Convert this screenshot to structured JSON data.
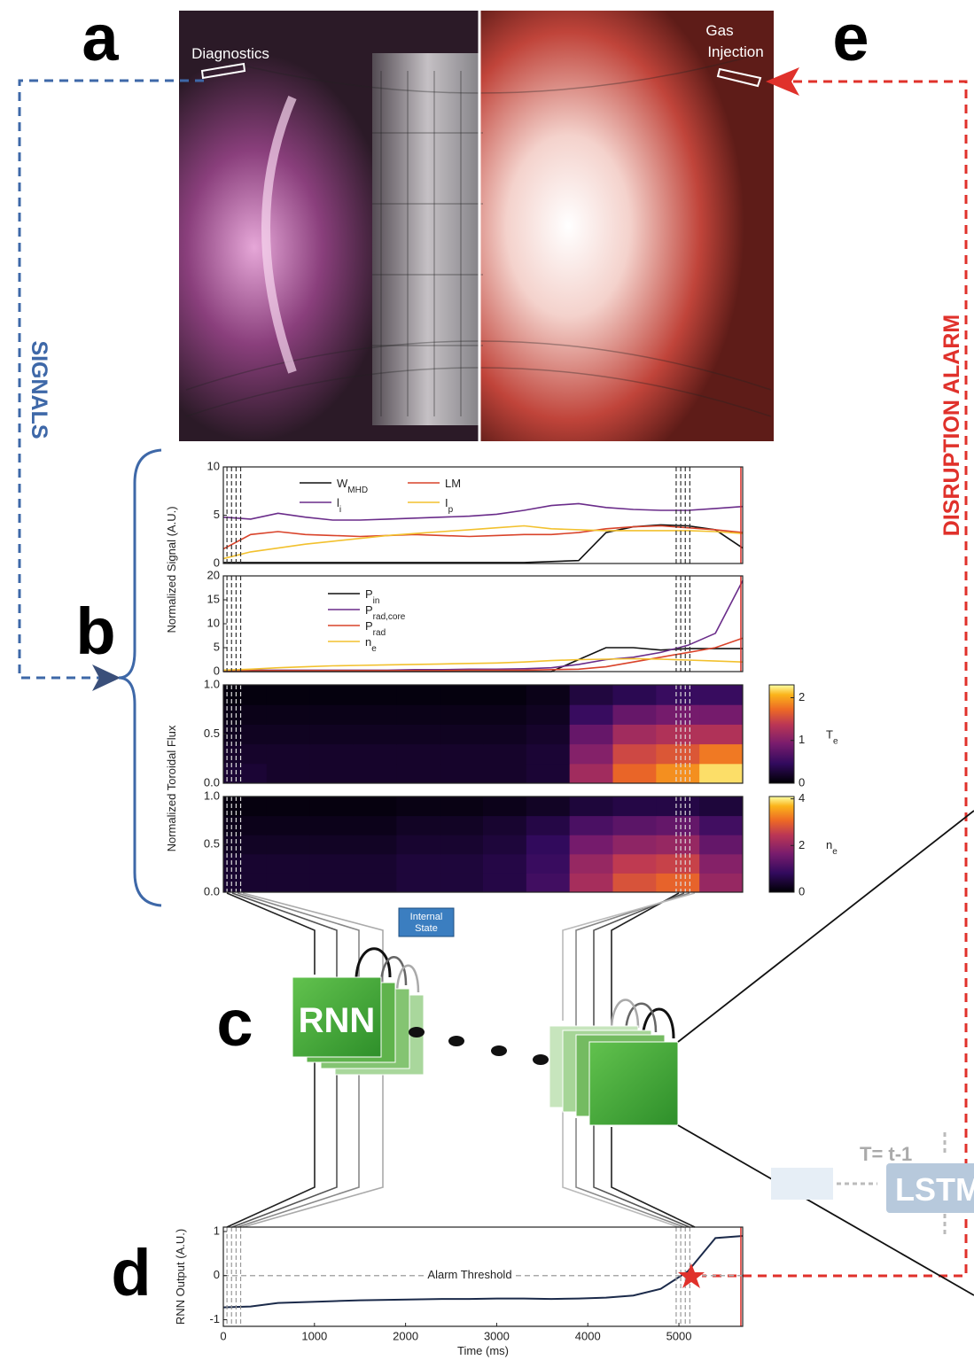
{
  "figure": {
    "panels": [
      "a",
      "b",
      "c",
      "d",
      "e"
    ],
    "diagnostics": "Diagnostics",
    "gas_injection": [
      "Gas",
      "Injection"
    ],
    "signals": "SIGNALS",
    "alarm": "DISRUPTION ALARM",
    "rnn": "RNN",
    "internal_state": [
      "Internal",
      "State"
    ],
    "lstm_time": "T= t-1",
    "lstm": "LSTM"
  },
  "chart_data": [
    {
      "type": "line",
      "ylabel": "Normalized Signal (A.U.)",
      "xlim": [
        0,
        5700
      ],
      "ylim": [
        0,
        10
      ],
      "yticks": [
        0,
        5,
        10
      ],
      "x": [
        0,
        300,
        600,
        900,
        1200,
        1500,
        1800,
        2100,
        2400,
        2700,
        3000,
        3300,
        3600,
        3900,
        4200,
        4500,
        4800,
        5100,
        5400,
        5700
      ],
      "series": [
        {
          "name": "W",
          "sub": "MHD",
          "color": "#111111",
          "values": [
            0.1,
            0.1,
            0.1,
            0.1,
            0.1,
            0.1,
            0.1,
            0.1,
            0.1,
            0.1,
            0.1,
            0.1,
            0.2,
            0.3,
            3.2,
            3.8,
            4.0,
            3.9,
            3.5,
            1.6
          ]
        },
        {
          "name": "LM",
          "color": "#d9432a",
          "values": [
            1.5,
            3.0,
            3.3,
            3.0,
            2.9,
            2.8,
            2.9,
            3.0,
            2.9,
            2.8,
            2.9,
            3.0,
            3.0,
            3.2,
            3.6,
            3.8,
            3.9,
            3.7,
            3.5,
            3.2
          ]
        },
        {
          "name": "l",
          "sub": "i",
          "color": "#6a2c8a",
          "values": [
            4.8,
            4.6,
            5.2,
            4.8,
            4.5,
            4.5,
            4.6,
            4.7,
            4.8,
            4.9,
            5.1,
            5.5,
            6.0,
            6.2,
            5.8,
            5.6,
            5.5,
            5.5,
            5.7,
            5.9
          ]
        },
        {
          "name": "I",
          "sub": "p",
          "color": "#f2c12e",
          "values": [
            0.5,
            1.2,
            1.6,
            2.0,
            2.3,
            2.6,
            2.9,
            3.1,
            3.3,
            3.5,
            3.7,
            3.9,
            3.6,
            3.5,
            3.4,
            3.4,
            3.4,
            3.4,
            3.3,
            3.1
          ]
        }
      ],
      "window_times": [
        40,
        90,
        140,
        190,
        4970,
        5020,
        5070,
        5120
      ],
      "disruption_time": 5680
    },
    {
      "type": "line",
      "xlim": [
        0,
        5700
      ],
      "ylim": [
        0,
        20
      ],
      "yticks": [
        0,
        5,
        10,
        15,
        20
      ],
      "x": [
        0,
        300,
        600,
        900,
        1200,
        1500,
        1800,
        2100,
        2400,
        2700,
        3000,
        3300,
        3600,
        3900,
        4200,
        4500,
        4800,
        5100,
        5400,
        5700
      ],
      "series": [
        {
          "name": "P",
          "sub": "in",
          "color": "#111111",
          "values": [
            0,
            0,
            0,
            0,
            0,
            0,
            0,
            0,
            0,
            0,
            0,
            0,
            0,
            2.5,
            5,
            5,
            4.5,
            4.8,
            4.8,
            4.8
          ]
        },
        {
          "name": "P",
          "sub": "rad,core",
          "color": "#6a2c8a",
          "values": [
            0.3,
            0.3,
            0.3,
            0.3,
            0.3,
            0.3,
            0.3,
            0.4,
            0.4,
            0.5,
            0.5,
            0.6,
            0.8,
            1.5,
            2.5,
            3,
            4,
            5.5,
            8,
            19
          ]
        },
        {
          "name": "P",
          "sub": "rad",
          "color": "#d9432a",
          "values": [
            0.2,
            0.2,
            0.2,
            0.2,
            0.2,
            0.2,
            0.2,
            0.2,
            0.2,
            0.3,
            0.3,
            0.3,
            0.4,
            0.5,
            1,
            2,
            3,
            4,
            5,
            7
          ]
        },
        {
          "name": "n",
          "sub": "e",
          "color": "#f2c12e",
          "values": [
            0.3,
            0.5,
            0.8,
            1,
            1.2,
            1.3,
            1.4,
            1.5,
            1.6,
            1.7,
            1.8,
            2,
            2.3,
            2.5,
            2.6,
            2.7,
            2.6,
            2.4,
            2.2,
            2
          ]
        }
      ],
      "window_times": [
        40,
        90,
        140,
        190,
        4970,
        5020,
        5070,
        5120
      ],
      "disruption_time": 5680
    },
    {
      "type": "heatmap",
      "ylabel": "Normalized Toroidal Flux",
      "xlim": [
        0,
        5700
      ],
      "ylim": [
        0,
        1
      ],
      "yticks": [
        {
          "value": 0,
          "label": "0.0"
        },
        0.5,
        {
          "value": 1,
          "label": "1.0"
        }
      ],
      "colormap": "inferno",
      "clim": [
        0,
        2.3
      ],
      "cticks": [
        0,
        1,
        2
      ],
      "colorbar_label": {
        "name": "T",
        "sub": "e"
      },
      "z": [
        [
          0.25,
          0.2,
          0.2,
          0.2,
          0.2,
          0.2,
          0.2,
          0.25,
          1.2,
          1.7,
          1.9,
          2.2
        ],
        [
          0.2,
          0.2,
          0.2,
          0.2,
          0.2,
          0.2,
          0.2,
          0.25,
          1.0,
          1.5,
          1.6,
          1.8
        ],
        [
          0.15,
          0.15,
          0.15,
          0.15,
          0.15,
          0.15,
          0.15,
          0.2,
          0.8,
          1.2,
          1.3,
          1.3
        ],
        [
          0.1,
          0.1,
          0.1,
          0.1,
          0.1,
          0.1,
          0.1,
          0.15,
          0.5,
          0.8,
          0.9,
          0.9
        ],
        [
          0.05,
          0.05,
          0.05,
          0.05,
          0.05,
          0.05,
          0.05,
          0.1,
          0.3,
          0.4,
          0.5,
          0.5
        ]
      ],
      "window_times": [
        40,
        90,
        140,
        190,
        4970,
        5020,
        5070,
        5120
      ]
    },
    {
      "type": "heatmap",
      "xlim": [
        0,
        5700
      ],
      "ylim": [
        0,
        1
      ],
      "yticks": [
        {
          "value": 0,
          "label": "0.0"
        },
        0.5,
        {
          "value": 1,
          "label": "1.0"
        }
      ],
      "colormap": "inferno",
      "clim": [
        0,
        4.1
      ],
      "cticks": [
        0,
        2,
        4
      ],
      "colorbar_label": {
        "name": "n",
        "sub": "e"
      },
      "z": [
        [
          0.4,
          0.4,
          0.4,
          0.4,
          0.5,
          0.5,
          0.6,
          1.0,
          2.2,
          2.8,
          3.0,
          2.0
        ],
        [
          0.4,
          0.4,
          0.4,
          0.4,
          0.5,
          0.5,
          0.6,
          0.9,
          2.0,
          2.5,
          2.6,
          1.8
        ],
        [
          0.3,
          0.3,
          0.3,
          0.3,
          0.4,
          0.4,
          0.5,
          0.8,
          1.6,
          1.9,
          2.0,
          1.4
        ],
        [
          0.2,
          0.2,
          0.2,
          0.2,
          0.3,
          0.3,
          0.4,
          0.6,
          1.1,
          1.3,
          1.4,
          1.0
        ],
        [
          0.1,
          0.1,
          0.1,
          0.1,
          0.15,
          0.15,
          0.2,
          0.3,
          0.5,
          0.6,
          0.6,
          0.5
        ]
      ],
      "window_times": [
        40,
        90,
        140,
        190,
        4970,
        5020,
        5070,
        5120
      ]
    },
    {
      "type": "line",
      "ylabel": "RNN Output (A.U.)",
      "xlabel": "Time (ms)",
      "xlim": [
        0,
        5700
      ],
      "ylim": [
        -1.15,
        1.1
      ],
      "xticks": [
        0,
        1000,
        2000,
        3000,
        4000,
        5000
      ],
      "yticks": [
        -1,
        0,
        1
      ],
      "x": [
        0,
        300,
        600,
        900,
        1200,
        1500,
        1800,
        2100,
        2400,
        2700,
        3000,
        3300,
        3600,
        3900,
        4200,
        4500,
        4800,
        5100,
        5400,
        5700
      ],
      "series": [
        {
          "color": "#1b2a4a",
          "values": [
            -0.72,
            -0.7,
            -0.62,
            -0.6,
            -0.58,
            -0.56,
            -0.55,
            -0.54,
            -0.53,
            -0.53,
            -0.52,
            -0.52,
            -0.53,
            -0.52,
            -0.5,
            -0.45,
            -0.3,
            0.1,
            0.85,
            0.9
          ]
        }
      ],
      "threshold": 0,
      "threshold_label": "Alarm Threshold",
      "window_times": [
        40,
        90,
        140,
        190,
        4970,
        5020,
        5070,
        5120
      ],
      "disruption_time": 5680
    }
  ]
}
